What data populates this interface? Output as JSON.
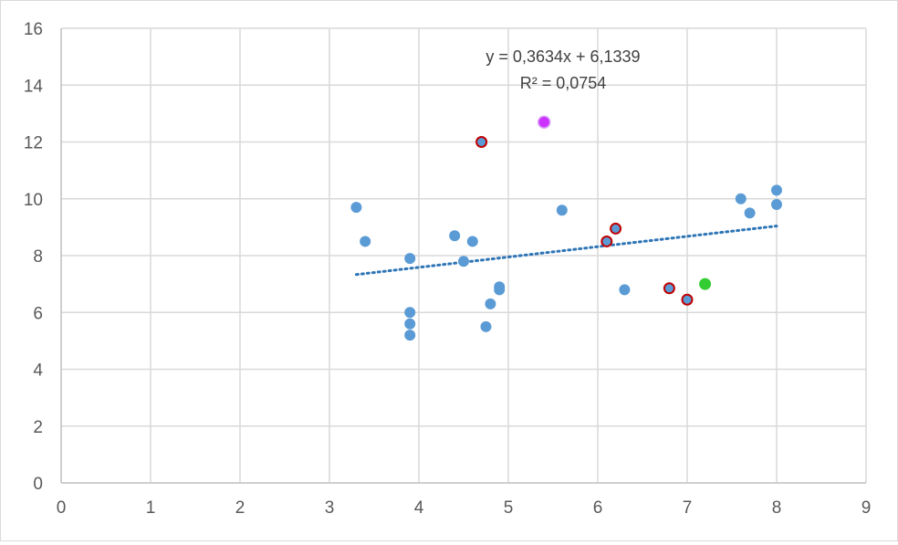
{
  "chart_data": {
    "type": "scatter",
    "title": "",
    "xlabel": "",
    "ylabel": "",
    "xlim": [
      0,
      9
    ],
    "ylim": [
      0,
      16
    ],
    "x_ticks": [
      "0",
      "1",
      "2",
      "3",
      "4",
      "5",
      "6",
      "7",
      "8",
      "9"
    ],
    "y_ticks": [
      "0",
      "2",
      "4",
      "6",
      "8",
      "10",
      "12",
      "14",
      "16"
    ],
    "grid": "vertical and horizontal",
    "legend": "none",
    "colors": {
      "primary": "#5b9bd5",
      "outlined_fill": "#5b9bd5",
      "outline": "#c00000",
      "highlight_purple": "#cc33ff",
      "highlight_green": "#33cc33",
      "trendline": "#2e75b6"
    },
    "series": [
      {
        "style": "primary",
        "points": [
          [
            3.3,
            9.7
          ],
          [
            3.4,
            8.5
          ],
          [
            3.9,
            7.9
          ],
          [
            3.9,
            6.0
          ],
          [
            3.9,
            5.6
          ],
          [
            3.9,
            5.2
          ],
          [
            4.4,
            8.7
          ],
          [
            4.5,
            7.8
          ],
          [
            4.6,
            8.5
          ],
          [
            4.75,
            5.5
          ],
          [
            4.8,
            6.3
          ],
          [
            4.9,
            6.8
          ],
          [
            4.9,
            6.9
          ],
          [
            5.6,
            9.6
          ],
          [
            6.3,
            6.8
          ],
          [
            7.6,
            10.0
          ],
          [
            7.7,
            9.5
          ],
          [
            8.0,
            10.3
          ],
          [
            8.0,
            9.8
          ]
        ]
      },
      {
        "style": "outlined",
        "points": [
          [
            4.7,
            12.0
          ],
          [
            6.1,
            8.5
          ],
          [
            6.2,
            8.95
          ],
          [
            6.8,
            6.85
          ],
          [
            7.0,
            6.45
          ]
        ]
      },
      {
        "style": "highlight_purple",
        "points": [
          [
            5.4,
            12.7
          ]
        ]
      },
      {
        "style": "highlight_green",
        "points": [
          [
            7.2,
            7.0
          ]
        ]
      }
    ],
    "trendline": {
      "type": "linear",
      "slope": 0.3634,
      "intercept": 6.1339,
      "x_range": [
        3.3,
        8.0
      ],
      "style": "dotted",
      "equation_label": "y = 0,3634x + 6,1339",
      "r2_label": "R² = 0,0754"
    }
  }
}
